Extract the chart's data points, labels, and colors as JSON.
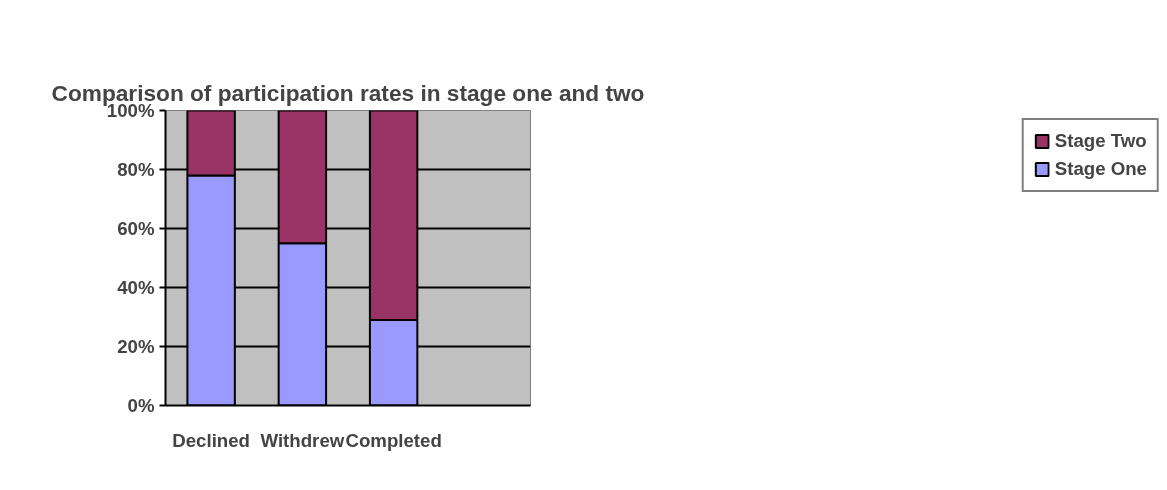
{
  "chart_data": {
    "type": "bar",
    "title": "Comparison of participation rates in stage one and two",
    "categories": [
      "Declined",
      "Withdrew",
      "Completed",
      null
    ],
    "stacked": true,
    "series": [
      {
        "name": "Stage One",
        "color": "#9999ff",
        "values": [
          78,
          55,
          29,
          null
        ]
      },
      {
        "name": "Stage Two",
        "color": "#993366",
        "values": [
          22,
          45,
          71,
          null
        ]
      }
    ],
    "ylim": [
      0,
      100
    ],
    "yticks": [
      {
        "value": 0,
        "label": "0%"
      },
      {
        "value": 20,
        "label": "20%"
      },
      {
        "value": 40,
        "label": "40%"
      },
      {
        "value": 60,
        "label": "60%"
      },
      {
        "value": 80,
        "label": "80%"
      },
      {
        "value": 100,
        "label": "100%"
      }
    ],
    "grid": "y",
    "legend": "right"
  }
}
